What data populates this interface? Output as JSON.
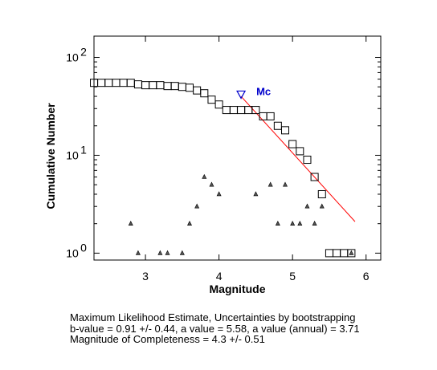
{
  "chart_data": {
    "type": "scatter",
    "xlabel": "Magnitude",
    "ylabel": "Cumulative Number",
    "xlim": [
      2.3,
      6.2
    ],
    "ylim": [
      0.85,
      165
    ],
    "yscale": "log",
    "grid": false,
    "x_ticks": [
      3,
      4,
      5,
      6
    ],
    "y_ticks": [
      {
        "value": 1,
        "base": "10",
        "exp": "0"
      },
      {
        "value": 10,
        "base": "10",
        "exp": "1"
      },
      {
        "value": 100,
        "base": "10",
        "exp": "2"
      }
    ],
    "series": [
      {
        "marker": "square",
        "color": "#000000",
        "points": [
          {
            "x": 2.3,
            "y": 55
          },
          {
            "x": 2.4,
            "y": 55
          },
          {
            "x": 2.5,
            "y": 55
          },
          {
            "x": 2.6,
            "y": 55
          },
          {
            "x": 2.7,
            "y": 55
          },
          {
            "x": 2.8,
            "y": 55
          },
          {
            "x": 2.9,
            "y": 53
          },
          {
            "x": 3.0,
            "y": 52
          },
          {
            "x": 3.1,
            "y": 52
          },
          {
            "x": 3.2,
            "y": 52
          },
          {
            "x": 3.3,
            "y": 51
          },
          {
            "x": 3.4,
            "y": 51
          },
          {
            "x": 3.5,
            "y": 50
          },
          {
            "x": 3.6,
            "y": 49
          },
          {
            "x": 3.7,
            "y": 46
          },
          {
            "x": 3.8,
            "y": 43
          },
          {
            "x": 3.9,
            "y": 37
          },
          {
            "x": 4.0,
            "y": 33
          },
          {
            "x": 4.1,
            "y": 29
          },
          {
            "x": 4.2,
            "y": 29
          },
          {
            "x": 4.3,
            "y": 29
          },
          {
            "x": 4.4,
            "y": 29
          },
          {
            "x": 4.5,
            "y": 29
          },
          {
            "x": 4.6,
            "y": 25
          },
          {
            "x": 4.7,
            "y": 25
          },
          {
            "x": 4.8,
            "y": 20
          },
          {
            "x": 4.9,
            "y": 18
          },
          {
            "x": 5.0,
            "y": 13
          },
          {
            "x": 5.1,
            "y": 11
          },
          {
            "x": 5.2,
            "y": 9
          },
          {
            "x": 5.3,
            "y": 6
          },
          {
            "x": 5.4,
            "y": 4
          },
          {
            "x": 5.5,
            "y": 1
          },
          {
            "x": 5.6,
            "y": 1
          },
          {
            "x": 5.7,
            "y": 1
          },
          {
            "x": 5.8,
            "y": 1
          }
        ]
      },
      {
        "marker": "triangle",
        "color": "#000000",
        "points": [
          {
            "x": 2.8,
            "y": 2
          },
          {
            "x": 2.9,
            "y": 1
          },
          {
            "x": 3.2,
            "y": 1
          },
          {
            "x": 3.3,
            "y": 1
          },
          {
            "x": 3.5,
            "y": 1
          },
          {
            "x": 3.6,
            "y": 2
          },
          {
            "x": 3.7,
            "y": 3
          },
          {
            "x": 3.8,
            "y": 6
          },
          {
            "x": 3.9,
            "y": 5
          },
          {
            "x": 4.0,
            "y": 4
          },
          {
            "x": 4.5,
            "y": 4
          },
          {
            "x": 4.7,
            "y": 5
          },
          {
            "x": 4.8,
            "y": 2
          },
          {
            "x": 4.9,
            "y": 5
          },
          {
            "x": 5.0,
            "y": 2
          },
          {
            "x": 5.1,
            "y": 2
          },
          {
            "x": 5.2,
            "y": 3
          },
          {
            "x": 5.3,
            "y": 2
          },
          {
            "x": 5.4,
            "y": 3
          },
          {
            "x": 5.8,
            "y": 1
          }
        ]
      }
    ],
    "fit_line": {
      "color": "#ff0000",
      "points": [
        {
          "x": 4.3,
          "y": 40
        },
        {
          "x": 5.85,
          "y": 2.1
        }
      ]
    },
    "mc_marker": {
      "x": 4.3,
      "y": 42,
      "marker": "triangle-down",
      "color": "#0000cc",
      "label": "Mc"
    }
  },
  "caption": {
    "line1": "Maximum Likelihood Estimate, Uncertainties by bootstrapping",
    "line2": "b-value = 0.91 +/- 0.44,  a value = 5.58,  a value (annual) = 3.71",
    "line3": "Magnitude of Completeness = 4.3 +/- 0.51"
  }
}
